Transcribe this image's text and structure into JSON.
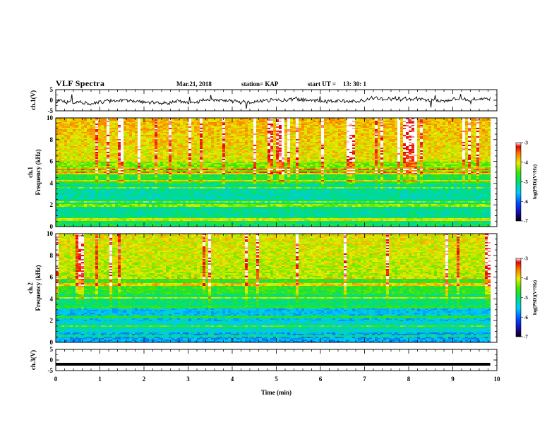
{
  "header": {
    "title": "VLF Spectra",
    "date": "Mar.21, 2018",
    "station": "station= KAP",
    "start_label": "start UT =",
    "start_time": "13: 30: 1"
  },
  "chart_data": [
    {
      "type": "line",
      "name": "ch.1 waveform",
      "ylabel": "ch.1(V)",
      "yticks": [
        "5",
        "0",
        "-5"
      ],
      "ylim": [
        -5,
        5
      ],
      "x_range_min": [
        0,
        10
      ],
      "data_extent_min": [
        0,
        9.85
      ],
      "description_values": "noisy signal fluctuating roughly between -2 and +2 V"
    },
    {
      "type": "heatmap",
      "name": "ch.1 spectrogram",
      "ylabel_top": "ch.1",
      "ylabel": "Frequency (kHz)",
      "yticks": [
        "0",
        "2",
        "4",
        "6",
        "8",
        "10"
      ],
      "ylim": [
        0,
        10
      ],
      "xlim": [
        0,
        10
      ],
      "colorbar": {
        "label": "log(PSD)(V²/Hz)",
        "ticks": [
          "-3",
          "-4",
          "-5",
          "-6",
          "-7"
        ],
        "range": [
          -7,
          -3
        ]
      }
    },
    {
      "type": "heatmap",
      "name": "ch.2 spectrogram",
      "ylabel_top": "ch.2",
      "ylabel": "Frequency (kHz)",
      "yticks": [
        "0",
        "2",
        "4",
        "6",
        "8",
        "10"
      ],
      "ylim": [
        0,
        10
      ],
      "xlim": [
        0,
        10
      ],
      "colorbar": {
        "label": "log(PSD)(V²/Hz)",
        "ticks": [
          "-3",
          "-4",
          "-5",
          "-6",
          "-7"
        ],
        "range": [
          -7,
          -3
        ]
      }
    },
    {
      "type": "line",
      "name": "ch.3 waveform",
      "ylabel": "ch.3(V)",
      "yticks": [
        "5",
        "0",
        "-5"
      ],
      "ylim": [
        -5,
        5
      ],
      "constant_value_V": -2,
      "x": [
        "0",
        "1",
        "2",
        "3",
        "4",
        "5",
        "6",
        "7",
        "8",
        "9",
        "10"
      ],
      "xlabel": "Time (min)"
    }
  ]
}
